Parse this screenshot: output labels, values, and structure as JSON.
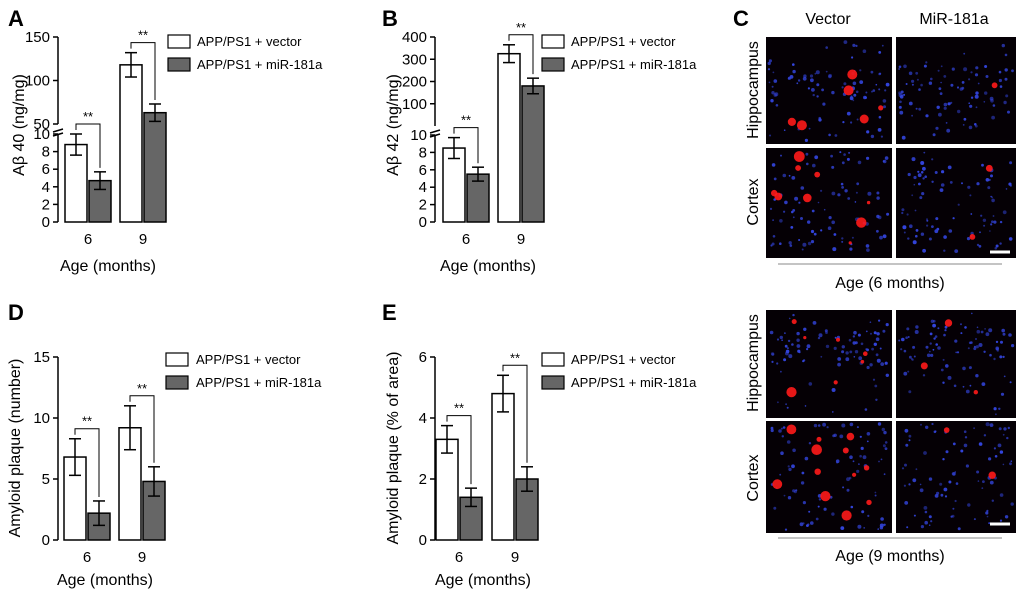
{
  "figure": {
    "colors": {
      "vector": "#ffffff",
      "mir": "#666666",
      "axis": "#000000",
      "micro_bg": "#050005",
      "nuclei": "#3344dd",
      "plaque": "#ff1a1a"
    },
    "legend": {
      "vector": "APP/PS1 + vector",
      "mir": "APP/PS1 + miR-181a"
    },
    "microscopy": {
      "letter": "C",
      "col_vector": "Vector",
      "col_mir": "MiR-181a",
      "row_hippo": "Hippocampus",
      "row_cortex": "Cortex",
      "age6": "Age (6 months)",
      "age9": "Age (9 months)"
    }
  },
  "chart_data": [
    {
      "id": "A",
      "type": "bar",
      "ylabel": "Aβ 40 (ng/mg)",
      "xlabel": "Age (months)",
      "categories": [
        "6",
        "9"
      ],
      "broken_axis": true,
      "lower_ylim": [
        0,
        10
      ],
      "lower_ticks": [
        "0",
        "2",
        "4",
        "6",
        "8",
        "10"
      ],
      "upper_ylim": [
        50,
        150
      ],
      "upper_ticks": [
        "50",
        "100",
        "150"
      ],
      "series": [
        {
          "name": "APP/PS1 + vector",
          "values": [
            8.8,
            118
          ],
          "errors": [
            1.2,
            14
          ]
        },
        {
          "name": "APP/PS1 + miR-181a",
          "values": [
            4.7,
            63
          ],
          "errors": [
            1.0,
            10
          ]
        }
      ],
      "significance": [
        "**",
        "**"
      ]
    },
    {
      "id": "B",
      "type": "bar",
      "ylabel": "Aβ 42 (ng/mg)",
      "xlabel": "Age (months)",
      "categories": [
        "6",
        "9"
      ],
      "broken_axis": true,
      "lower_ylim": [
        0,
        10
      ],
      "lower_ticks": [
        "0",
        "2",
        "4",
        "6",
        "8",
        "10"
      ],
      "upper_ylim": [
        0,
        400
      ],
      "upper_ticks": [
        "100",
        "200",
        "300",
        "400"
      ],
      "series": [
        {
          "name": "APP/PS1 + vector",
          "values": [
            8.5,
            325
          ],
          "errors": [
            1.2,
            40
          ]
        },
        {
          "name": "APP/PS1 + miR-181a",
          "values": [
            5.5,
            180
          ],
          "errors": [
            0.8,
            35
          ]
        }
      ],
      "significance": [
        "**",
        "**"
      ]
    },
    {
      "id": "D",
      "type": "bar",
      "ylabel": "Amyloid plaque (number)",
      "xlabel": "Age (months)",
      "categories": [
        "6",
        "9"
      ],
      "broken_axis": false,
      "ylim": [
        0,
        15
      ],
      "ticks": [
        "0",
        "5",
        "10",
        "15"
      ],
      "series": [
        {
          "name": "APP/PS1 + vector",
          "values": [
            6.8,
            9.2
          ],
          "errors": [
            1.5,
            1.8
          ]
        },
        {
          "name": "APP/PS1 + miR-181a",
          "values": [
            2.2,
            4.8
          ],
          "errors": [
            1.0,
            1.2
          ]
        }
      ],
      "significance": [
        "**",
        "**"
      ]
    },
    {
      "id": "E",
      "type": "bar",
      "ylabel": "Amyloid plaque (% of area)",
      "xlabel": "Age (months)",
      "categories": [
        "6",
        "9"
      ],
      "broken_axis": false,
      "ylim": [
        0,
        6
      ],
      "ticks": [
        "0",
        "2",
        "4",
        "6"
      ],
      "series": [
        {
          "name": "APP/PS1 + vector",
          "values": [
            3.3,
            4.8
          ],
          "errors": [
            0.45,
            0.6
          ]
        },
        {
          "name": "APP/PS1 + miR-181a",
          "values": [
            1.4,
            2.0
          ],
          "errors": [
            0.3,
            0.4
          ]
        }
      ],
      "significance": [
        "**",
        "**"
      ]
    }
  ]
}
